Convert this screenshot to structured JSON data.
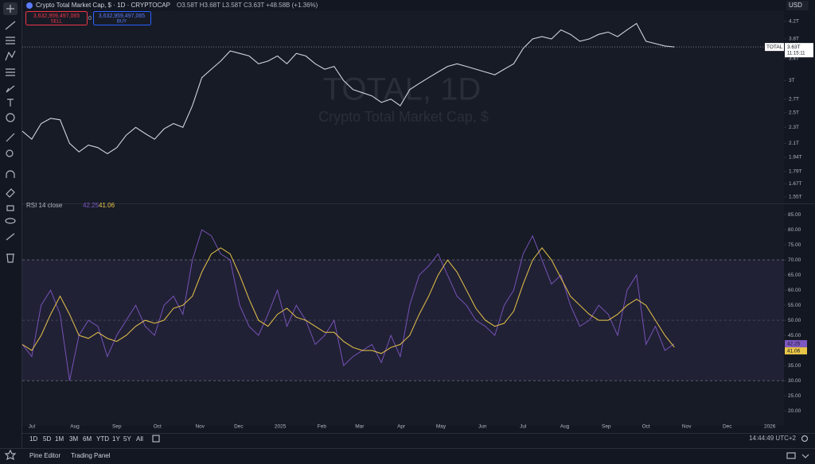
{
  "header": {
    "title": "Crypto Total Market Cap, $ · 1D · CRYPTOCAP",
    "ohlc": "O3.58T H3.68T L3.58T C3.63T +48.58B (+1.36%)",
    "sell_price": "3,632,959,497,065",
    "sell": "SELL",
    "spread": "0",
    "buy_price": "3,632,959,497,065",
    "buy": "BUY",
    "currency": "USD"
  },
  "chart_data": [
    {
      "type": "line",
      "watermark": "TOTAL, 1D",
      "watermark_subtitle": "Crypto Total Market Cap, $",
      "symbol": "TOTAL",
      "countdown": "11:15:11",
      "color": "#d1d4dc",
      "log": true,
      "values": [
        2.25,
        2.15,
        2.35,
        2.42,
        2.4,
        2.1,
        2.0,
        2.08,
        2.05,
        1.98,
        2.05,
        2.2,
        2.3,
        2.22,
        2.15,
        2.28,
        2.35,
        2.3,
        2.6,
        3.05,
        3.2,
        3.35,
        3.55,
        3.5,
        3.45,
        3.3,
        3.35,
        3.45,
        3.3,
        3.5,
        3.45,
        3.3,
        3.2,
        3.25,
        3.0,
        2.85,
        2.8,
        2.75,
        2.65,
        2.7,
        2.6,
        2.85,
        2.95,
        3.05,
        3.15,
        3.25,
        3.3,
        3.25,
        3.2,
        3.15,
        3.1,
        3.2,
        3.3,
        3.6,
        3.8,
        3.85,
        3.8,
        4.0,
        3.9,
        3.75,
        3.8,
        3.9,
        3.95,
        3.85,
        4.0,
        4.15,
        3.75,
        3.7,
        3.65,
        {
          "value": 3.63,
          "label": "3.63T"
        }
      ],
      "xlim": [
        0,
        80.6
      ],
      "ylim": [
        1.5,
        4.45
      ],
      "yticks": [
        {
          "value": 4.2,
          "label": "4.2T"
        },
        {
          "value": 3.8,
          "label": "3.8T"
        },
        {
          "value": 3.4,
          "label": "3.4T"
        },
        {
          "value": 3,
          "label": "3T"
        },
        {
          "value": 2.7,
          "label": "2.7T"
        },
        {
          "value": 2.5,
          "label": "2.5T"
        },
        {
          "value": 2.3,
          "label": "2.3T"
        },
        {
          "value": 2.1,
          "label": "2.1T"
        },
        {
          "value": 1.94,
          "label": "1.94T"
        },
        {
          "value": 1.79,
          "label": "1.79T"
        },
        {
          "value": 1.67,
          "label": "1.67T"
        },
        {
          "value": 1.55,
          "label": "1.55T"
        }
      ]
    },
    {
      "type": "line",
      "title": "RSI 14 close",
      "xlim": [
        0,
        80.6
      ],
      "ylim": [
        15.3,
        88.2
      ],
      "yticks": [
        {
          "value": 85,
          "label": "85.00"
        },
        {
          "value": 80,
          "label": "80.00"
        },
        {
          "value": 75,
          "label": "75.00"
        },
        {
          "value": 70,
          "label": "70.00"
        },
        {
          "value": 65,
          "label": "65.00"
        },
        {
          "value": 60,
          "label": "60.00"
        },
        {
          "value": 55,
          "label": "55.00"
        },
        {
          "value": 50,
          "label": "50.00"
        },
        {
          "value": 45,
          "label": "45.00"
        },
        {
          "value": 40,
          "label": "40.00"
        },
        {
          "value": 35,
          "label": "35.00"
        },
        {
          "value": 30,
          "label": "30.00"
        },
        {
          "value": 25,
          "label": "25.00"
        },
        {
          "value": 20,
          "label": "20.00"
        }
      ],
      "bands": {
        "upper": 70,
        "middle": 50,
        "lower": 30
      },
      "xticks": [
        {
          "value": 1,
          "label": "Jul"
        },
        {
          "value": 5.56,
          "label": "Aug"
        },
        {
          "value": 10,
          "label": "Sep"
        },
        {
          "value": 14.3,
          "label": "Oct"
        },
        {
          "value": 18.8,
          "label": "Nov"
        },
        {
          "value": 22.9,
          "label": "Dec"
        },
        {
          "value": 27.3,
          "label": "2025"
        },
        {
          "value": 31.7,
          "label": "Feb"
        },
        {
          "value": 35.7,
          "label": "Mar"
        },
        {
          "value": 40.1,
          "label": "Apr"
        },
        {
          "value": 44.3,
          "label": "May"
        },
        {
          "value": 48.7,
          "label": "Jun"
        },
        {
          "value": 53,
          "label": "Jul"
        },
        {
          "value": 57.4,
          "label": "Aug"
        },
        {
          "value": 61.8,
          "label": "Sep"
        },
        {
          "value": 66,
          "label": "Oct"
        },
        {
          "value": 70.3,
          "label": "Nov"
        },
        {
          "value": 74.6,
          "label": "Dec"
        },
        {
          "value": 79.1,
          "label": "2026"
        }
      ],
      "series": [
        {
          "color": "#7e57c2",
          "values": [
            42,
            38,
            55,
            60,
            52,
            30,
            45,
            50,
            48,
            38,
            45,
            50,
            55,
            48,
            45,
            55,
            58,
            52,
            70,
            80,
            78,
            72,
            70,
            55,
            48,
            45,
            52,
            60,
            48,
            55,
            50,
            42,
            45,
            50,
            35,
            38,
            40,
            42,
            36,
            45,
            38,
            55,
            65,
            68,
            72,
            65,
            58,
            55,
            50,
            48,
            45,
            55,
            60,
            72,
            78,
            70,
            62,
            65,
            55,
            48,
            50,
            55,
            52,
            45,
            60,
            65,
            42,
            48,
            40,
            42.25
          ]
        },
        {
          "color": "#e8c547",
          "values": [
            42,
            40,
            45,
            52,
            58,
            52,
            45,
            44,
            46,
            44,
            43,
            45,
            48,
            50,
            49,
            50,
            54,
            55,
            58,
            66,
            72,
            74,
            72,
            65,
            57,
            50,
            48,
            52,
            54,
            51,
            50,
            48,
            46,
            46,
            43,
            41,
            40,
            40,
            39,
            41,
            42,
            45,
            52,
            58,
            65,
            70,
            66,
            60,
            54,
            50,
            48,
            49,
            53,
            62,
            70,
            74,
            70,
            64,
            58,
            55,
            52,
            50,
            50,
            52,
            55,
            57,
            55,
            50,
            45,
            41.06
          ]
        }
      ]
    }
  ],
  "ranges": [
    "1D",
    "5D",
    "1M",
    "3M",
    "6M",
    "YTD",
    "1Y",
    "5Y",
    "All"
  ],
  "footer": {
    "time": "14:44:49 UTC+2",
    "pine": "Pine Editor",
    "panel": "Trading Panel"
  }
}
